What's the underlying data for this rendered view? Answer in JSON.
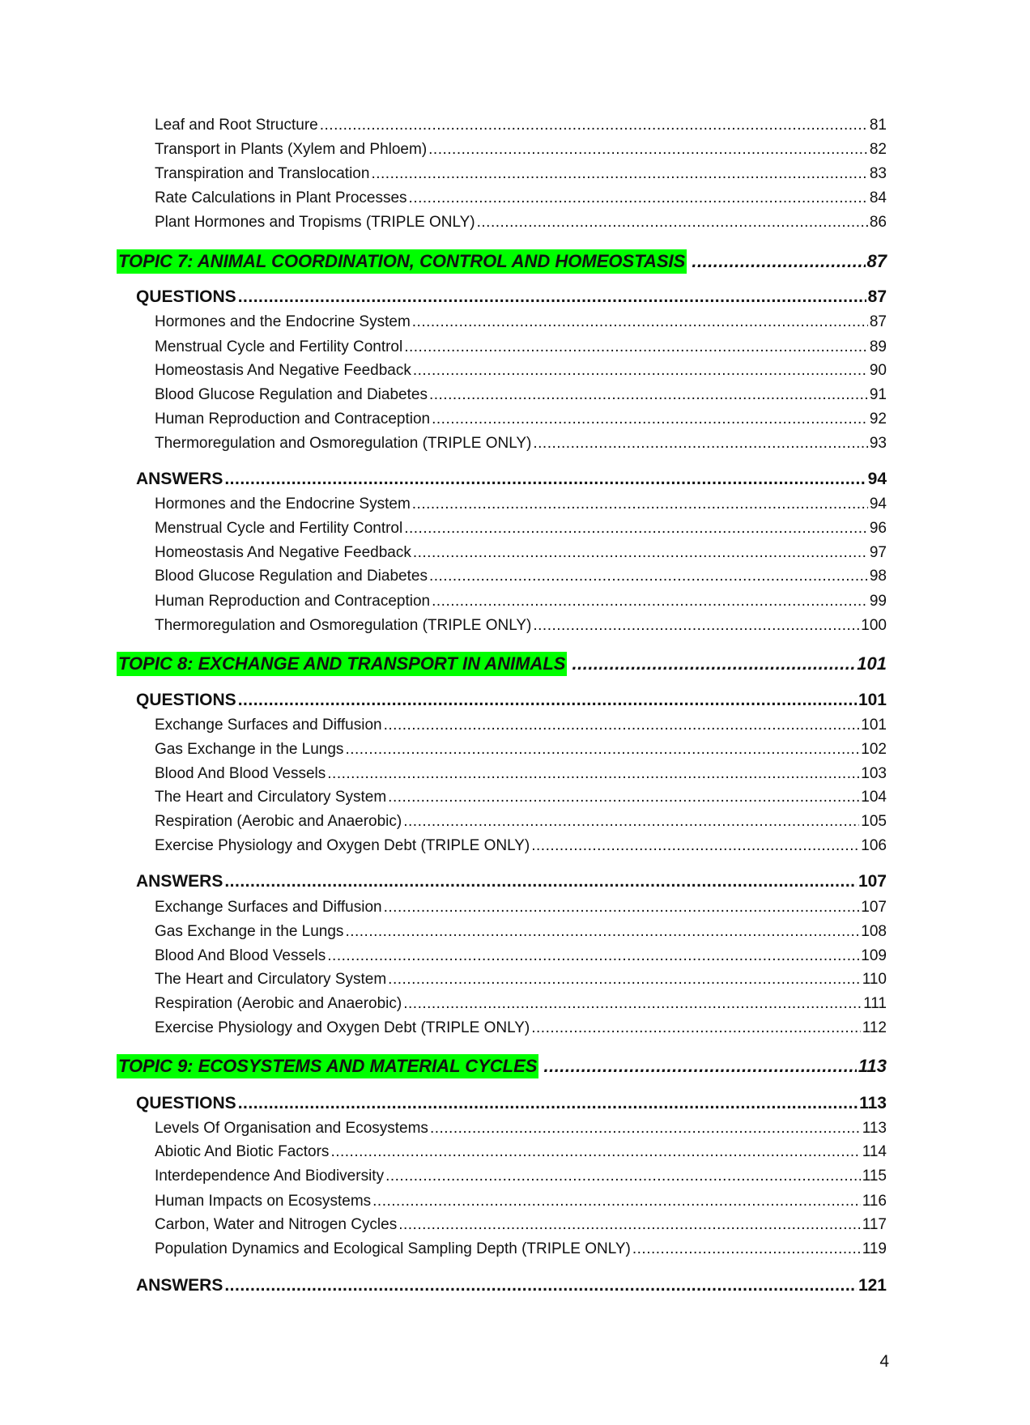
{
  "toc": [
    {
      "type": "item",
      "label": "Leaf and Root Structure",
      "page": "81"
    },
    {
      "type": "item",
      "label": "Transport in Plants (Xylem and Phloem)",
      "page": "82"
    },
    {
      "type": "item",
      "label": "Transpiration and Translocation",
      "page": "83"
    },
    {
      "type": "item",
      "label": "Rate Calculations in Plant Processes",
      "page": "84"
    },
    {
      "type": "item",
      "label": "Plant Hormones and Tropisms (TRIPLE ONLY)",
      "page": "86"
    },
    {
      "type": "topic",
      "label": "TOPIC 7: ANIMAL COORDINATION, CONTROL AND HOMEOSTASIS",
      "page": "87"
    },
    {
      "type": "heading",
      "label": "QUESTIONS",
      "page": "87"
    },
    {
      "type": "item",
      "label": "Hormones and the Endocrine System",
      "page": "87"
    },
    {
      "type": "item",
      "label": "Menstrual Cycle and Fertility Control",
      "page": "89"
    },
    {
      "type": "item",
      "label": "Homeostasis And Negative Feedback",
      "page": "90"
    },
    {
      "type": "item",
      "label": "Blood Glucose Regulation and Diabetes",
      "page": "91"
    },
    {
      "type": "item",
      "label": "Human Reproduction and Contraception",
      "page": "92"
    },
    {
      "type": "item",
      "label": "Thermoregulation and Osmoregulation (TRIPLE ONLY)",
      "page": "93"
    },
    {
      "type": "heading",
      "label": "ANSWERS",
      "page": "94"
    },
    {
      "type": "item",
      "label": "Hormones and the Endocrine System",
      "page": "94"
    },
    {
      "type": "item",
      "label": "Menstrual Cycle and Fertility Control",
      "page": "96"
    },
    {
      "type": "item",
      "label": "Homeostasis And Negative Feedback",
      "page": "97"
    },
    {
      "type": "item",
      "label": "Blood Glucose Regulation and Diabetes",
      "page": "98"
    },
    {
      "type": "item",
      "label": "Human Reproduction and Contraception",
      "page": "99"
    },
    {
      "type": "item",
      "label": "Thermoregulation and Osmoregulation (TRIPLE ONLY)",
      "page": "100"
    },
    {
      "type": "topic",
      "label": "TOPIC 8: EXCHANGE AND TRANSPORT IN ANIMALS",
      "page": "101"
    },
    {
      "type": "heading",
      "label": "QUESTIONS",
      "page": "101"
    },
    {
      "type": "item",
      "label": "Exchange Surfaces and Diffusion",
      "page": "101"
    },
    {
      "type": "item",
      "label": "Gas Exchange in the Lungs",
      "page": "102"
    },
    {
      "type": "item",
      "label": "Blood And Blood Vessels",
      "page": "103"
    },
    {
      "type": "item",
      "label": "The Heart and Circulatory System",
      "page": "104"
    },
    {
      "type": "item",
      "label": "Respiration (Aerobic and Anaerobic)",
      "page": "105"
    },
    {
      "type": "item",
      "label": "Exercise Physiology and Oxygen Debt (TRIPLE ONLY)",
      "page": "106"
    },
    {
      "type": "heading",
      "label": "ANSWERS",
      "page": "107"
    },
    {
      "type": "item",
      "label": "Exchange Surfaces and Diffusion",
      "page": "107"
    },
    {
      "type": "item",
      "label": "Gas Exchange in the Lungs",
      "page": "108"
    },
    {
      "type": "item",
      "label": "Blood And Blood Vessels",
      "page": "109"
    },
    {
      "type": "item",
      "label": "The Heart and Circulatory System",
      "page": "110"
    },
    {
      "type": "item",
      "label": "Respiration (Aerobic and Anaerobic)",
      "page": "111"
    },
    {
      "type": "item",
      "label": "Exercise Physiology and Oxygen Debt (TRIPLE ONLY)",
      "page": "112"
    },
    {
      "type": "topic",
      "label": "TOPIC 9: ECOSYSTEMS AND MATERIAL CYCLES",
      "page": "113"
    },
    {
      "type": "heading",
      "label": "QUESTIONS",
      "page": "113"
    },
    {
      "type": "item",
      "label": "Levels Of Organisation and Ecosystems",
      "page": "113"
    },
    {
      "type": "item",
      "label": "Abiotic And Biotic Factors",
      "page": "114"
    },
    {
      "type": "item",
      "label": "Interdependence And Biodiversity",
      "page": "115"
    },
    {
      "type": "item",
      "label": "Human Impacts on Ecosystems",
      "page": "116"
    },
    {
      "type": "item",
      "label": "Carbon, Water and Nitrogen Cycles",
      "page": "117"
    },
    {
      "type": "item",
      "label": "Population Dynamics and Ecological Sampling Depth (TRIPLE ONLY)",
      "page": "119"
    },
    {
      "type": "heading",
      "label": "ANSWERS",
      "page": "121"
    }
  ],
  "highlight_color": "#00ff00",
  "page_number": "4"
}
